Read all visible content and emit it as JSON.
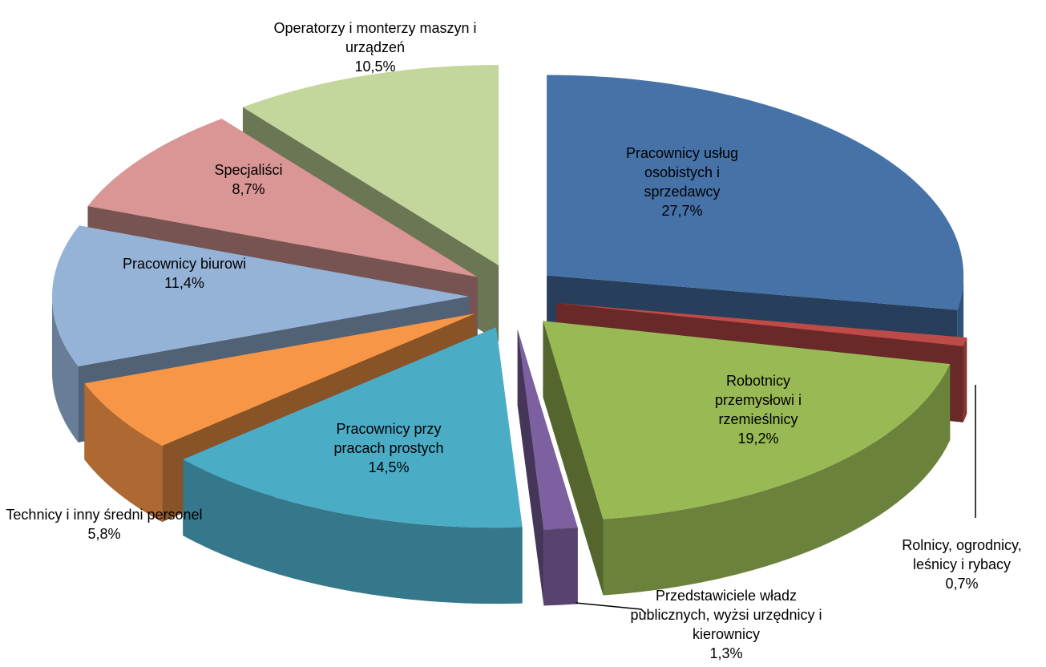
{
  "chart_data": {
    "type": "pie3d",
    "categories": [
      "Pracownicy usług osobistych i sprzedawcy",
      "Rolnicy, ogrodnicy, leśnicy i rybacy",
      "Robotnicy przemysłowi i rzemieślnicy",
      "Przedstawiciele władz publicznych, wyżsi urzędnicy i kierownicy",
      "Pracownicy przy pracach prostych",
      "Technicy i inny średni personel",
      "Pracownicy biurowi",
      "Specjaliści",
      "Operatorzy i monterzy maszyn i urządzeń"
    ],
    "values": [
      27.7,
      0.7,
      19.2,
      1.3,
      14.5,
      5.8,
      11.4,
      8.7,
      10.5
    ],
    "value_labels": [
      "27,7%",
      "0,7%",
      "19,2%",
      "1,3%",
      "14,5%",
      "5,8%",
      "11,4%",
      "8,7%",
      "10,5%"
    ],
    "colors": [
      "#4672a8",
      "#be4b48",
      "#98b954",
      "#7d60a0",
      "#4bacc6",
      "#f79646",
      "#95b3d7",
      "#d99694",
      "#c3d69b"
    ]
  }
}
